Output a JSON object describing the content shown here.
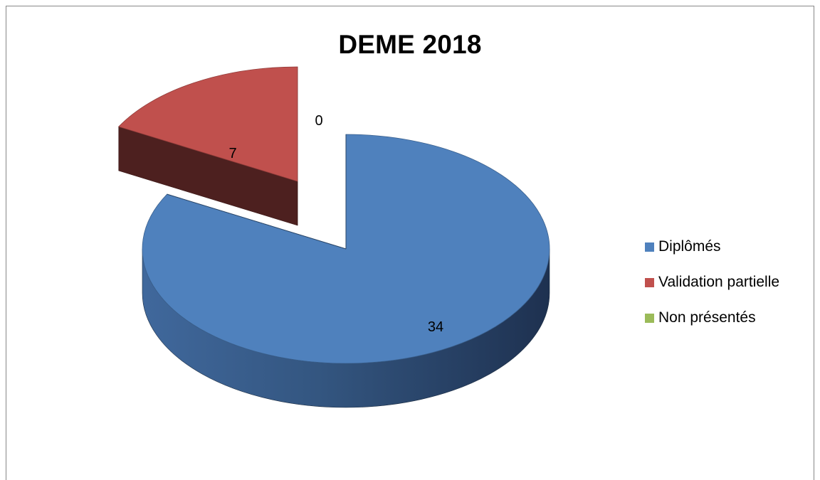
{
  "chart_data": {
    "type": "pie",
    "title": "DEME 2018",
    "categories": [
      "Diplômés",
      "Validation partielle",
      "Non présentés"
    ],
    "values": [
      34,
      7,
      0
    ],
    "colors": [
      "#4F81BD",
      "#C0504D",
      "#9BBB59"
    ],
    "legend_position": "right",
    "style": "3d-exploded"
  }
}
